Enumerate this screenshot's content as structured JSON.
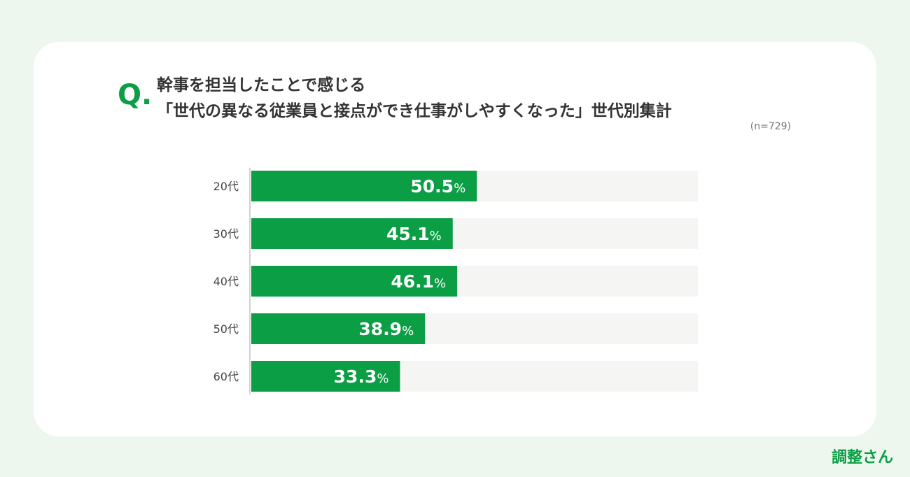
{
  "question_mark": "Q.",
  "title": {
    "line1": "幹事を担当したことで感じる",
    "line2": "「世代の異なる従業員と接点ができ仕事がしやすくなった」世代別集計"
  },
  "sample_size": "(n=729)",
  "logo": "調整さん",
  "colors": {
    "accent": "#0b9e45",
    "track": "#f5f6f4",
    "background": "#eef7ee"
  },
  "chart_data": {
    "type": "bar",
    "orientation": "horizontal",
    "categories": [
      "20代",
      "30代",
      "40代",
      "50代",
      "60代"
    ],
    "values": [
      50.5,
      45.1,
      46.1,
      38.9,
      33.3
    ],
    "value_unit": "%",
    "xlim": [
      0,
      100
    ],
    "grid": false
  }
}
